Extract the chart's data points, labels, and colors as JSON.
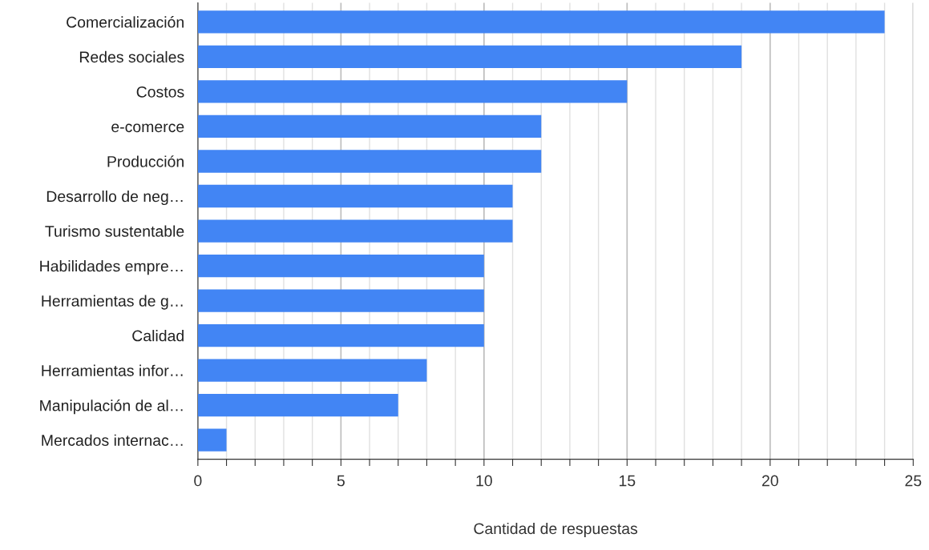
{
  "chart_data": {
    "type": "bar",
    "orientation": "horizontal",
    "xlabel": "Cantidad de respuestas",
    "categories": [
      "Comercialización",
      "Redes sociales",
      "Costos",
      "e-comerce",
      "Producción",
      "Desarrollo de neg…",
      "Turismo sustentable",
      "Habilidades empre…",
      "Herramientas de g…",
      "Calidad",
      "Herramientas infor…",
      "Manipulación de al…",
      "Mercados internac…"
    ],
    "values": [
      24,
      19,
      15,
      12,
      12,
      11,
      11,
      10,
      10,
      10,
      8,
      7,
      1
    ],
    "color": "#4285f4",
    "xlim": [
      0,
      25
    ],
    "xticks": [
      0,
      {
        "value": 1,
        "label": null
      },
      {
        "value": 2,
        "label": null
      },
      {
        "value": 3,
        "label": null
      },
      {
        "value": 4,
        "label": null
      },
      5,
      {
        "value": 6,
        "label": null
      },
      {
        "value": 7,
        "label": null
      },
      {
        "value": 8,
        "label": null
      },
      {
        "value": 9,
        "label": null
      },
      10,
      {
        "value": 11,
        "label": null
      },
      {
        "value": 12,
        "label": null
      },
      {
        "value": 13,
        "label": null
      },
      {
        "value": 14,
        "label": null
      },
      15,
      {
        "value": 16,
        "label": null
      },
      {
        "value": 17,
        "label": null
      },
      {
        "value": 18,
        "label": null
      },
      {
        "value": 19,
        "label": null
      },
      20,
      {
        "value": 21,
        "label": null
      },
      {
        "value": 22,
        "label": null
      },
      {
        "value": 23,
        "label": null
      },
      {
        "value": 24,
        "label": null
      },
      25
    ],
    "grid": "x",
    "legend": false
  }
}
